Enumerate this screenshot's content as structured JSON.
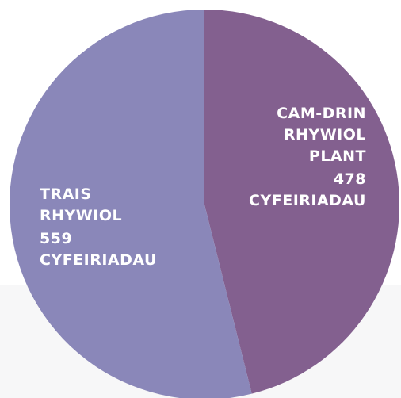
{
  "chart_data": {
    "type": "pie",
    "categories": [
      "CAM-DRIN RHYWIOL PLANT",
      "TRAIS RHYWIOL"
    ],
    "values": [
      478,
      559
    ],
    "value_labels": [
      "478 CYFEIRIADAU",
      "559 CYFEIRIADAU"
    ],
    "colors": [
      "#83608f",
      "#8a87b9"
    ]
  }
}
